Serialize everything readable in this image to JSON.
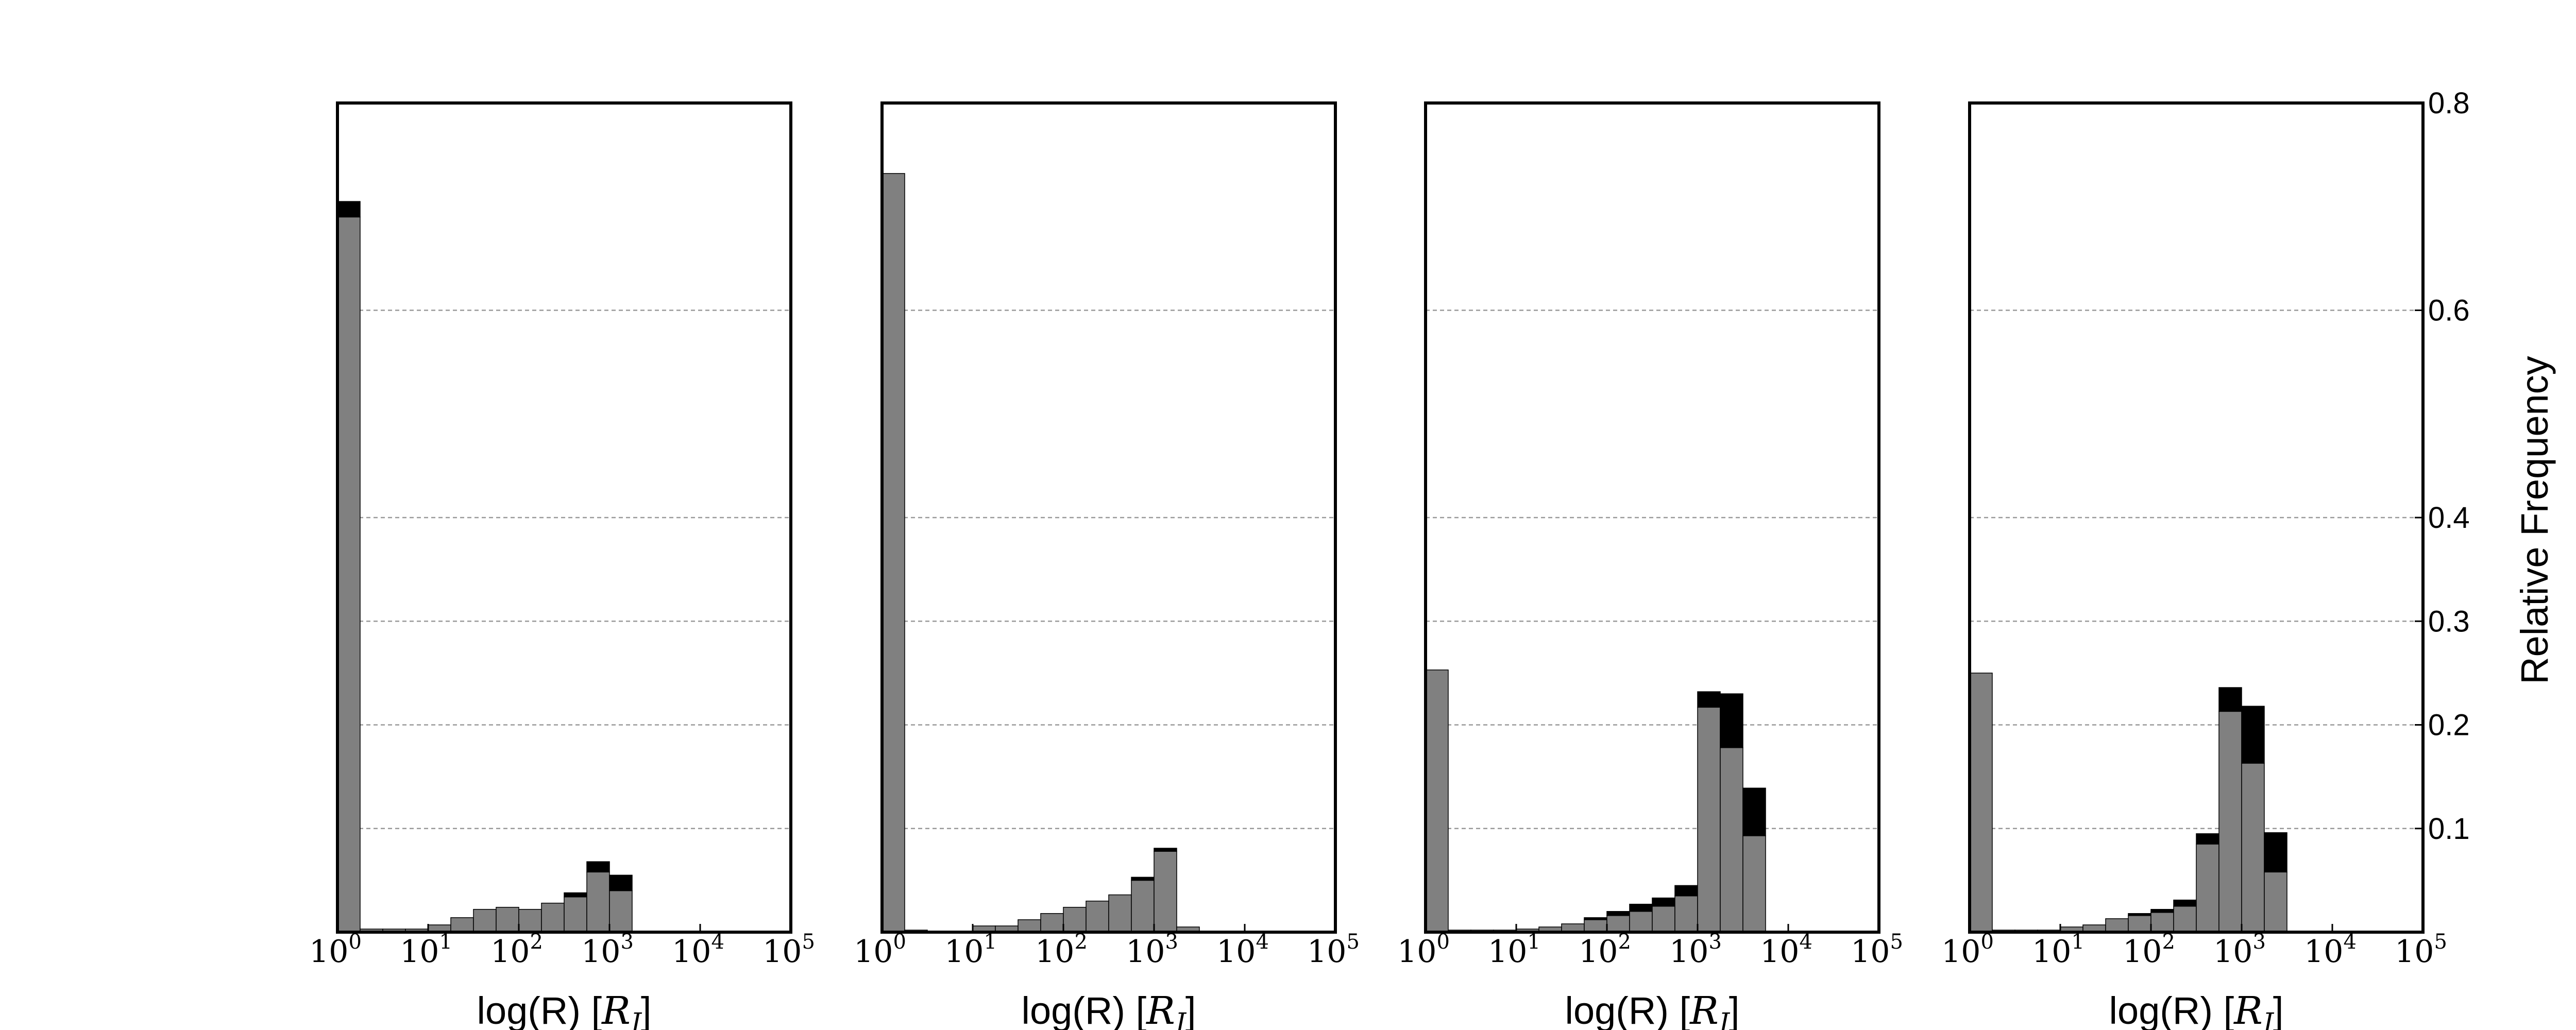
{
  "chart_data": {
    "type": "bar",
    "layout": "4 panels sharing a y axis on the right",
    "ylabel": "Relative Frequency",
    "yticks": [
      0.1,
      0.2,
      0.3,
      0.4,
      0.6,
      0.8
    ],
    "ylim": [
      0,
      0.8
    ],
    "y_grid": "dashed at y ticks",
    "colors": {
      "lower": "#808080",
      "upper": "#000000",
      "edge": "#000000"
    },
    "panels": [
      {
        "xlabel": "log(R) [R_J]",
        "xlim": [
          0,
          5
        ],
        "xticks": [
          0,
          1,
          2,
          3,
          4,
          5
        ],
        "bin_width": 0.25,
        "bin_start": [
          0.0,
          0.25,
          0.5,
          0.75,
          1.0,
          1.25,
          1.5,
          1.75,
          2.0,
          2.25,
          2.5,
          2.75,
          3.0,
          3.25,
          3.5,
          3.75,
          4.0,
          4.25,
          4.5,
          4.75
        ],
        "series": [
          {
            "name": "",
            "values": [
              0.69,
              0.003,
              0.003,
              0.003,
              0.007,
              0.014,
              0.022,
              0.024,
              0.022,
              0.028,
              0.034,
              0.058,
              0.04,
              0,
              0,
              0,
              0,
              0,
              0,
              0
            ]
          },
          {
            "name": "",
            "values": [
              0.015,
              0,
              0,
              0,
              0,
              0,
              0,
              0,
              0,
              0,
              0.004,
              0.01,
              0.015,
              0,
              0,
              0,
              0,
              0,
              0,
              0
            ]
          }
        ]
      },
      {
        "xlabel": "log(R) [R_J]",
        "xlim": [
          0,
          5
        ],
        "xticks": [
          0,
          1,
          2,
          3,
          4,
          5
        ],
        "bin_width": 0.25,
        "bin_start": [
          0.0,
          0.25,
          0.5,
          0.75,
          1.0,
          1.25,
          1.5,
          1.75,
          2.0,
          2.25,
          2.5,
          2.75,
          3.0,
          3.25,
          3.5,
          3.75,
          4.0,
          4.25,
          4.5,
          4.75
        ],
        "series": [
          {
            "name": "",
            "values": [
              0.732,
              0.002,
              0,
              0,
              0.006,
              0.006,
              0.012,
              0.018,
              0.024,
              0.03,
              0.036,
              0.05,
              0.078,
              0.005,
              0,
              0,
              0,
              0,
              0,
              0
            ]
          },
          {
            "name": "",
            "values": [
              0,
              0,
              0,
              0,
              0,
              0,
              0,
              0,
              0,
              0,
              0,
              0.003,
              0.003,
              0,
              0,
              0,
              0,
              0,
              0,
              0
            ]
          }
        ]
      },
      {
        "xlabel": "log(R) [R_J]",
        "xlim": [
          0,
          5
        ],
        "xticks": [
          0,
          1,
          2,
          3,
          4,
          5
        ],
        "bin_width": 0.25,
        "bin_start": [
          0.0,
          0.25,
          0.5,
          0.75,
          1.0,
          1.25,
          1.5,
          1.75,
          2.0,
          2.25,
          2.5,
          2.75,
          3.0,
          3.25,
          3.5,
          3.75,
          4.0,
          4.25,
          4.5,
          4.75
        ],
        "series": [
          {
            "name": "",
            "values": [
              0.253,
              0.002,
              0.002,
              0.002,
              0.003,
              0.005,
              0.008,
              0.012,
              0.016,
              0.02,
              0.025,
              0.035,
              0.217,
              0.178,
              0.093,
              0,
              0,
              0,
              0,
              0
            ]
          },
          {
            "name": "",
            "values": [
              0,
              0,
              0,
              0,
              0,
              0,
              0,
              0.002,
              0.004,
              0.007,
              0.008,
              0.01,
              0.015,
              0.052,
              0.046,
              0,
              0,
              0,
              0,
              0
            ]
          }
        ]
      },
      {
        "xlabel": "log(R) [R_J]",
        "xlim": [
          0,
          5
        ],
        "xticks": [
          0,
          1,
          2,
          3,
          4,
          5
        ],
        "bin_width": 0.25,
        "bin_start": [
          0.0,
          0.25,
          0.5,
          0.75,
          1.0,
          1.25,
          1.5,
          1.75,
          2.0,
          2.25,
          2.5,
          2.75,
          3.0,
          3.25,
          3.5,
          3.75,
          4.0,
          4.25,
          4.5,
          4.75
        ],
        "series": [
          {
            "name": "",
            "values": [
              0.25,
              0.002,
              0.002,
              0.002,
              0.005,
              0.007,
              0.013,
              0.016,
              0.019,
              0.025,
              0.085,
              0.213,
              0.163,
              0.058,
              0,
              0,
              0,
              0,
              0,
              0
            ]
          },
          {
            "name": "",
            "values": [
              0,
              0,
              0,
              0,
              0,
              0,
              0,
              0.002,
              0.003,
              0.006,
              0.01,
              0.023,
              0.055,
              0.038,
              0,
              0,
              0,
              0,
              0,
              0
            ]
          }
        ]
      }
    ]
  }
}
